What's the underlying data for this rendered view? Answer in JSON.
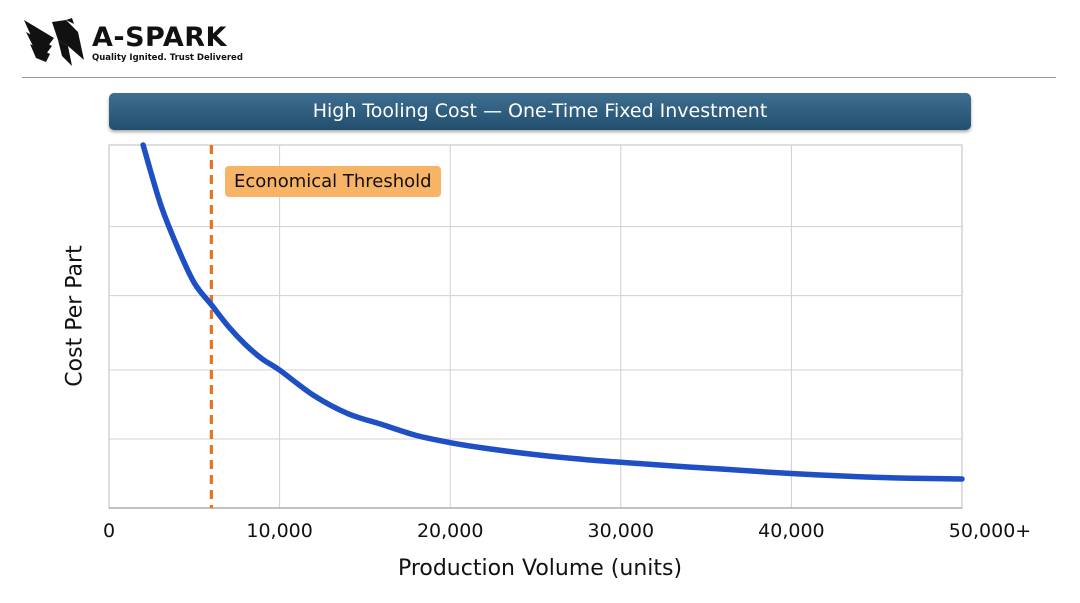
{
  "brand": {
    "name": "A-SPARK",
    "tagline": "Quality Ignited. Trust Delivered",
    "logo": "hawk-logo-icon"
  },
  "chart_data": {
    "type": "line",
    "title": "High Tooling Cost — One-Time Fixed Investment",
    "xlabel": "Production Volume (units)",
    "ylabel": "Cost Per Part",
    "x_tick_labels": [
      "0",
      "10,000",
      "20,000",
      "30,000",
      "40,000",
      "50,000+"
    ],
    "x_ticks": [
      0,
      10000,
      20000,
      30000,
      40000,
      50000
    ],
    "xlim": [
      0,
      50000
    ],
    "ylim": [
      0,
      100
    ],
    "y_tick_labels_shown": false,
    "grid": true,
    "series": [
      {
        "color": "#1f4fc4",
        "x": [
          2000,
          3000,
          4000,
          5000,
          6000,
          7000,
          8000,
          9000,
          10000,
          12000,
          14000,
          16000,
          18000,
          20000,
          22000,
          25000,
          28000,
          30000,
          33000,
          36000,
          40000,
          44000,
          47000,
          50000
        ],
        "y": [
          100,
          84,
          72,
          62,
          56,
          50,
          45,
          41,
          38,
          31,
          26,
          23,
          20,
          18,
          16.5,
          14.7,
          13.3,
          12.6,
          11.6,
          10.7,
          9.5,
          8.6,
          8.2,
          8.0
        ]
      }
    ],
    "annotations": [
      {
        "type": "vline",
        "x": 6000,
        "color": "#e8741f",
        "style": "dashed",
        "label": "Economical Threshold",
        "label_bg": "#f7b366"
      }
    ]
  }
}
